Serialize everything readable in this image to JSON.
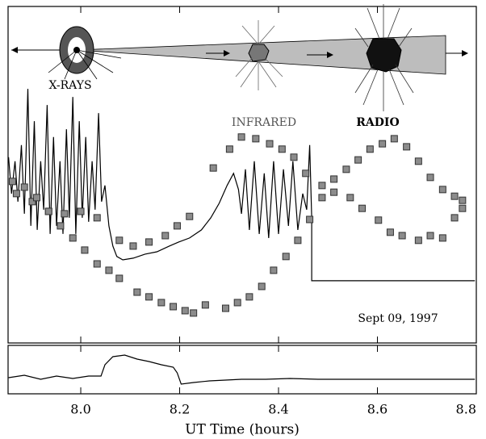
{
  "chart_data": [
    {
      "type": "line",
      "annotation": "Sept 09, 1997",
      "xlim": [
        7.853,
        8.8
      ],
      "ylim": [
        0,
        100
      ],
      "series": [
        {
          "name": "X-RAYS",
          "type": "line",
          "color": "#000000",
          "x": [
            7.854,
            7.86,
            7.867,
            7.873,
            7.88,
            7.886,
            7.893,
            7.899,
            7.906,
            7.912,
            7.919,
            7.925,
            7.932,
            7.938,
            7.945,
            7.951,
            7.958,
            7.964,
            7.971,
            7.977,
            7.984,
            7.99,
            7.997,
            8.003,
            8.01,
            8.016,
            8.023,
            8.029,
            8.036,
            8.042,
            8.049,
            8.057,
            8.065,
            8.073,
            8.085,
            8.106,
            8.13,
            8.154,
            8.179,
            8.198,
            8.22,
            8.244,
            8.263,
            8.28,
            8.296,
            8.309,
            8.319,
            8.325,
            8.333,
            8.341,
            8.351,
            8.361,
            8.371,
            8.38,
            8.39,
            8.4,
            8.41,
            8.42,
            8.429,
            8.439,
            8.449,
            8.457,
            8.463,
            8.467,
            8.467,
            8.797
          ],
          "values": [
            55.2,
            44.4,
            54.0,
            42.0,
            58.8,
            38.4,
            75.5,
            34.8,
            65.9,
            33.6,
            54.0,
            39.6,
            70.7,
            32.4,
            61.2,
            34.8,
            54.0,
            32.4,
            63.5,
            37.2,
            73.1,
            32.4,
            65.9,
            37.2,
            61.2,
            36.0,
            54.0,
            39.6,
            68.3,
            42.0,
            46.8,
            34.8,
            28.8,
            25.7,
            24.7,
            25.2,
            26.4,
            27.1,
            28.8,
            30.0,
            31.2,
            33.6,
            37.2,
            41.5,
            46.8,
            50.4,
            45.6,
            38.4,
            51.6,
            33.6,
            54.0,
            32.4,
            50.4,
            31.2,
            54.0,
            32.4,
            51.6,
            34.8,
            54.0,
            33.6,
            44.4,
            39.6,
            58.8,
            37.2,
            18.5,
            18.5
          ]
        },
        {
          "name": "INFRARED",
          "type": "scatter",
          "color": "#8c8c8c",
          "x": [
            7.87,
            7.902,
            7.935,
            7.967,
            8.0,
            8.033,
            8.078,
            8.106,
            8.138,
            8.171,
            8.195,
            8.22,
            8.268,
            8.301,
            8.325,
            8.354,
            8.382,
            8.407,
            8.431,
            8.455,
            8.488,
            8.512,
            8.545,
            8.569,
            8.602,
            8.626,
            8.65,
            8.683,
            8.707,
            8.732,
            8.756,
            8.772
          ],
          "values": [
            44.4,
            42.0,
            39.1,
            38.4,
            39.1,
            37.2,
            30.5,
            28.8,
            30.0,
            31.9,
            34.8,
            37.6,
            52.0,
            57.6,
            61.2,
            60.7,
            59.2,
            57.6,
            55.2,
            50.4,
            46.8,
            44.8,
            43.2,
            40.0,
            36.5,
            32.9,
            31.9,
            30.5,
            31.9,
            31.2,
            37.2,
            40.0
          ]
        },
        {
          "name": "RADIO",
          "type": "scatter",
          "color": "#8c8c8c",
          "x": [
            7.862,
            7.886,
            7.911,
            7.935,
            7.959,
            7.984,
            8.008,
            8.033,
            8.057,
            8.078,
            8.114,
            8.138,
            8.163,
            8.187,
            8.211,
            8.228,
            8.252,
            8.293,
            8.317,
            8.341,
            8.366,
            8.39,
            8.415,
            8.439,
            8.463,
            8.488,
            8.512,
            8.537,
            8.561,
            8.585,
            8.61,
            8.634,
            8.659,
            8.683,
            8.707,
            8.732,
            8.756,
            8.772
          ],
          "values": [
            48.0,
            46.3,
            43.2,
            39.1,
            34.8,
            31.2,
            27.6,
            23.5,
            21.6,
            19.2,
            15.1,
            13.7,
            12.0,
            10.8,
            9.6,
            8.9,
            11.3,
            10.3,
            12.0,
            13.7,
            16.8,
            21.6,
            25.7,
            30.5,
            36.7,
            43.2,
            48.7,
            51.6,
            54.4,
            57.6,
            59.2,
            60.7,
            58.3,
            54.0,
            49.2,
            45.6,
            43.6,
            42.4
          ]
        }
      ]
    },
    {
      "type": "line",
      "xlabel": "UT Time (hours)",
      "xlim": [
        7.853,
        8.8
      ],
      "xticks": [
        {
          "value": 8,
          "label": "8.0"
        },
        8.2,
        8.4,
        8.6,
        8.8
      ],
      "ylim": [
        0,
        100
      ],
      "series": [
        {
          "type": "line",
          "color": "#000000",
          "x": [
            7.854,
            7.886,
            7.919,
            7.951,
            7.984,
            8.016,
            8.041,
            8.049,
            8.065,
            8.089,
            8.114,
            8.138,
            8.163,
            8.187,
            8.195,
            8.203,
            8.228,
            8.26,
            8.293,
            8.325,
            8.374,
            8.423,
            8.48,
            8.797
          ],
          "values": [
            33.3,
            38.3,
            30.0,
            36.7,
            31.7,
            36.7,
            36.7,
            60.0,
            76.7,
            80.0,
            71.7,
            66.7,
            60.0,
            55.0,
            43.3,
            20.0,
            23.3,
            26.7,
            28.3,
            30.0,
            30.0,
            31.7,
            30.0,
            30.0
          ]
        }
      ]
    }
  ]
}
